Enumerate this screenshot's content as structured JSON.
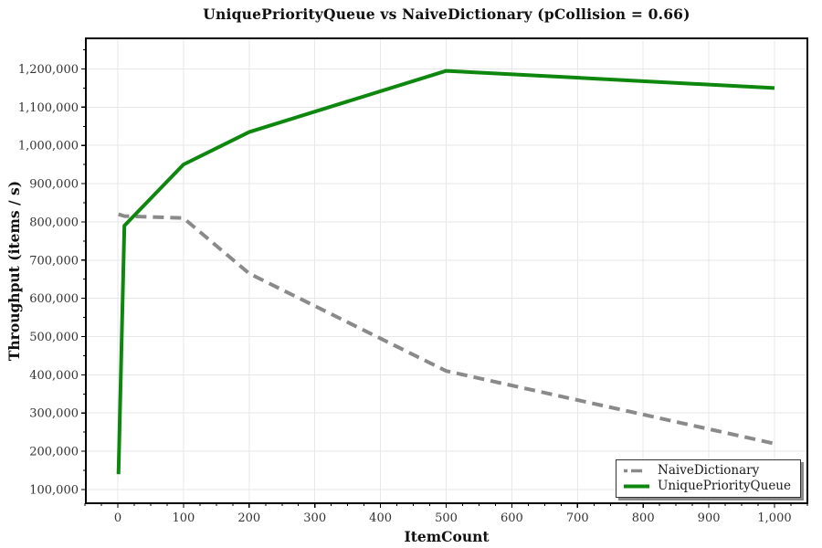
{
  "chart_data": {
    "type": "line",
    "title": "UniquePriorityQueue vs NaiveDictionary (pCollision = 0.66)",
    "xlabel": "ItemCount",
    "ylabel": "Throughput (items / s)",
    "x": [
      1,
      10,
      100,
      200,
      500,
      1000
    ],
    "series": [
      {
        "name": "NaiveDictionary",
        "color": "#8a8a8a",
        "style": "dashed",
        "values": [
          820000,
          815000,
          810000,
          665000,
          410000,
          220000
        ]
      },
      {
        "name": "UniquePriorityQueue",
        "color": "#0d870d",
        "style": "solid",
        "values": [
          140000,
          790000,
          950000,
          1035000,
          1195000,
          1150000
        ]
      }
    ],
    "xlim": [
      0,
      1000
    ],
    "ylim": [
      64000,
      1280000
    ],
    "x_ticks": [
      0,
      100,
      200,
      300,
      400,
      500,
      600,
      700,
      800,
      900,
      1000
    ],
    "y_ticks": [
      100000,
      200000,
      300000,
      400000,
      500000,
      600000,
      700000,
      800000,
      900000,
      1000000,
      1100000,
      1200000
    ],
    "x_minor_step": 25,
    "y_minor_step": 50000,
    "grid": true,
    "legend_position": "lower right"
  },
  "colors": {
    "grid": "#e7e7e7",
    "axis": "#000000",
    "tick_label": "#333333"
  }
}
